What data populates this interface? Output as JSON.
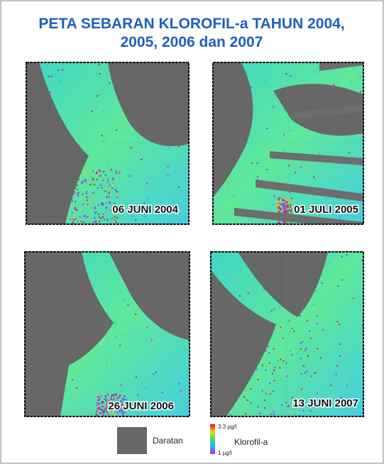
{
  "title": [
    "PETA SEBARAN KLOROFIL-a TAHUN 2004,",
    "2005, 2006 dan 2007"
  ],
  "panels": [
    {
      "label": "06 JUNI 2004"
    },
    {
      "label": "01 JULI 2005"
    },
    {
      "label": "26 JUNI 2006"
    },
    {
      "label": "13 JUNI 2007"
    }
  ],
  "legend": {
    "land": "Daratan",
    "max": "3.3 µg/l",
    "min": "1 µg/l",
    "variable": "Klorofil-a"
  }
}
